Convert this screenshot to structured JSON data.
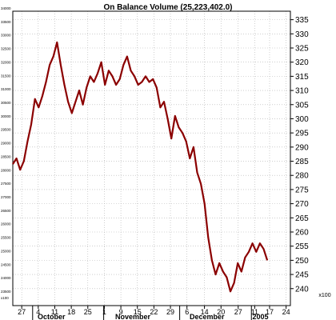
{
  "chart_data": {
    "type": "line",
    "title": "On Balance Volume (25,223,402.0)",
    "xlabel": "",
    "ylabel": "",
    "unit_label": "x100",
    "line_color": "#8b0000",
    "grid": true,
    "ylim": [
      234,
      338
    ],
    "y_ticks_right": [
      335,
      330,
      325,
      320,
      315,
      310,
      305,
      300,
      295,
      290,
      285,
      280,
      275,
      270,
      265,
      260,
      255,
      250,
      245,
      240
    ],
    "y_ticks_left": [
      "34000",
      "33500",
      "33000",
      "32500",
      "32000",
      "31500",
      "31000",
      "30500",
      "30000",
      "29500",
      "29000",
      "28500",
      "28000",
      "27500",
      "27000",
      "26500",
      "26000",
      "25500",
      "25000",
      "24500",
      "24000",
      "23500"
    ],
    "x_day_labels": [
      {
        "label": "27",
        "x": 2.7
      },
      {
        "label": "4",
        "x": 7.7
      },
      {
        "label": "11",
        "x": 12.7
      },
      {
        "label": "18",
        "x": 17.7
      },
      {
        "label": "25",
        "x": 22.7
      },
      {
        "label": "1",
        "x": 27.7
      },
      {
        "label": "9",
        "x": 32.7
      },
      {
        "label": "15",
        "x": 37.7
      },
      {
        "label": "22",
        "x": 42.7
      },
      {
        "label": "29",
        "x": 47.7
      },
      {
        "label": "6",
        "x": 52.7
      },
      {
        "label": "14",
        "x": 58.0
      },
      {
        "label": "20",
        "x": 63.0
      },
      {
        "label": "27",
        "x": 68.2
      },
      {
        "label": "11",
        "x": 73.2
      },
      {
        "label": "17",
        "x": 77.7
      },
      {
        "label": "24",
        "x": 82.7
      }
    ],
    "x_month_labels": [
      {
        "label": "October",
        "x": 7.5
      },
      {
        "label": "November",
        "x": 31.0
      },
      {
        "label": "December",
        "x": 53.5
      },
      {
        "label": "2005",
        "x": 72.5
      }
    ],
    "x_month_separators": [
      6.0,
      27.5,
      50.5,
      72.2
    ],
    "xlim": [
      0,
      84
    ],
    "values": [
      284,
      286,
      282,
      285,
      292,
      298,
      307,
      304,
      308,
      313,
      319,
      322,
      327,
      319,
      312,
      306,
      302,
      306,
      310,
      305,
      311,
      315,
      313,
      316,
      320,
      312,
      317,
      315,
      312,
      314,
      319,
      322,
      317,
      315,
      312,
      313,
      315,
      313,
      314,
      311,
      304,
      306,
      300,
      293,
      301,
      297,
      295,
      292,
      286,
      290,
      281,
      277,
      270,
      258,
      250,
      245,
      249,
      246,
      244,
      239,
      242,
      249,
      246,
      251,
      253,
      256,
      253,
      256,
      254,
      250
    ]
  }
}
